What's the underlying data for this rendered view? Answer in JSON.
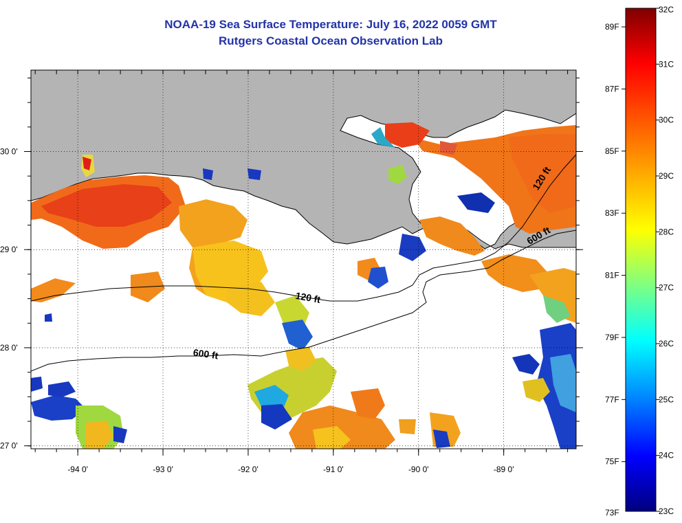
{
  "title_line1": "NOAA-19 Sea Surface Temperature:  July 16, 2022 0059 GMT",
  "title_line2": "Rutgers Coastal Ocean Observation Lab",
  "map": {
    "lon_range": [
      -94.55,
      -88.15
    ],
    "lat_range": [
      26.97,
      30.83
    ],
    "lon_ticks": [
      {
        "value": -94,
        "label": "-94 0'"
      },
      {
        "value": -93,
        "label": "-93 0'"
      },
      {
        "value": -92,
        "label": "-92 0'"
      },
      {
        "value": -91,
        "label": "-91 0'"
      },
      {
        "value": -90,
        "label": "-90 0'"
      },
      {
        "value": -89,
        "label": "-89 0'"
      }
    ],
    "lat_ticks": [
      {
        "value": 30,
        "label": "30 0'"
      },
      {
        "value": 29,
        "label": "29 0'"
      },
      {
        "value": 28,
        "label": "28 0'"
      },
      {
        "value": 27,
        "label": "27 0'"
      }
    ],
    "grid": true,
    "land_color": "#b4b4b4",
    "contour_labels": [
      {
        "text": "120 ft",
        "lon": -91.45,
        "lat": 28.5,
        "rotate": 10
      },
      {
        "text": "600 ft",
        "lon": -92.65,
        "lat": 27.92,
        "rotate": 8
      },
      {
        "text": "120 ft",
        "lon": -88.6,
        "lat": 29.6,
        "rotate": -58
      },
      {
        "text": "600 ft",
        "lon": -88.7,
        "lat": 29.05,
        "rotate": -30
      }
    ]
  },
  "colorbar": {
    "celsius_labels": [
      "32C",
      "31C",
      "30C",
      "29C",
      "28C",
      "27C",
      "26C",
      "25C",
      "24C",
      "23C"
    ],
    "fahrenheit_labels": [
      "89F",
      "87F",
      "85F",
      "83F",
      "81F",
      "79F",
      "77F",
      "75F",
      "73F"
    ],
    "celsius_range": [
      23,
      32
    ],
    "fahrenheit_values": [
      89,
      87,
      85,
      83,
      81,
      79,
      77,
      75,
      73
    ]
  }
}
